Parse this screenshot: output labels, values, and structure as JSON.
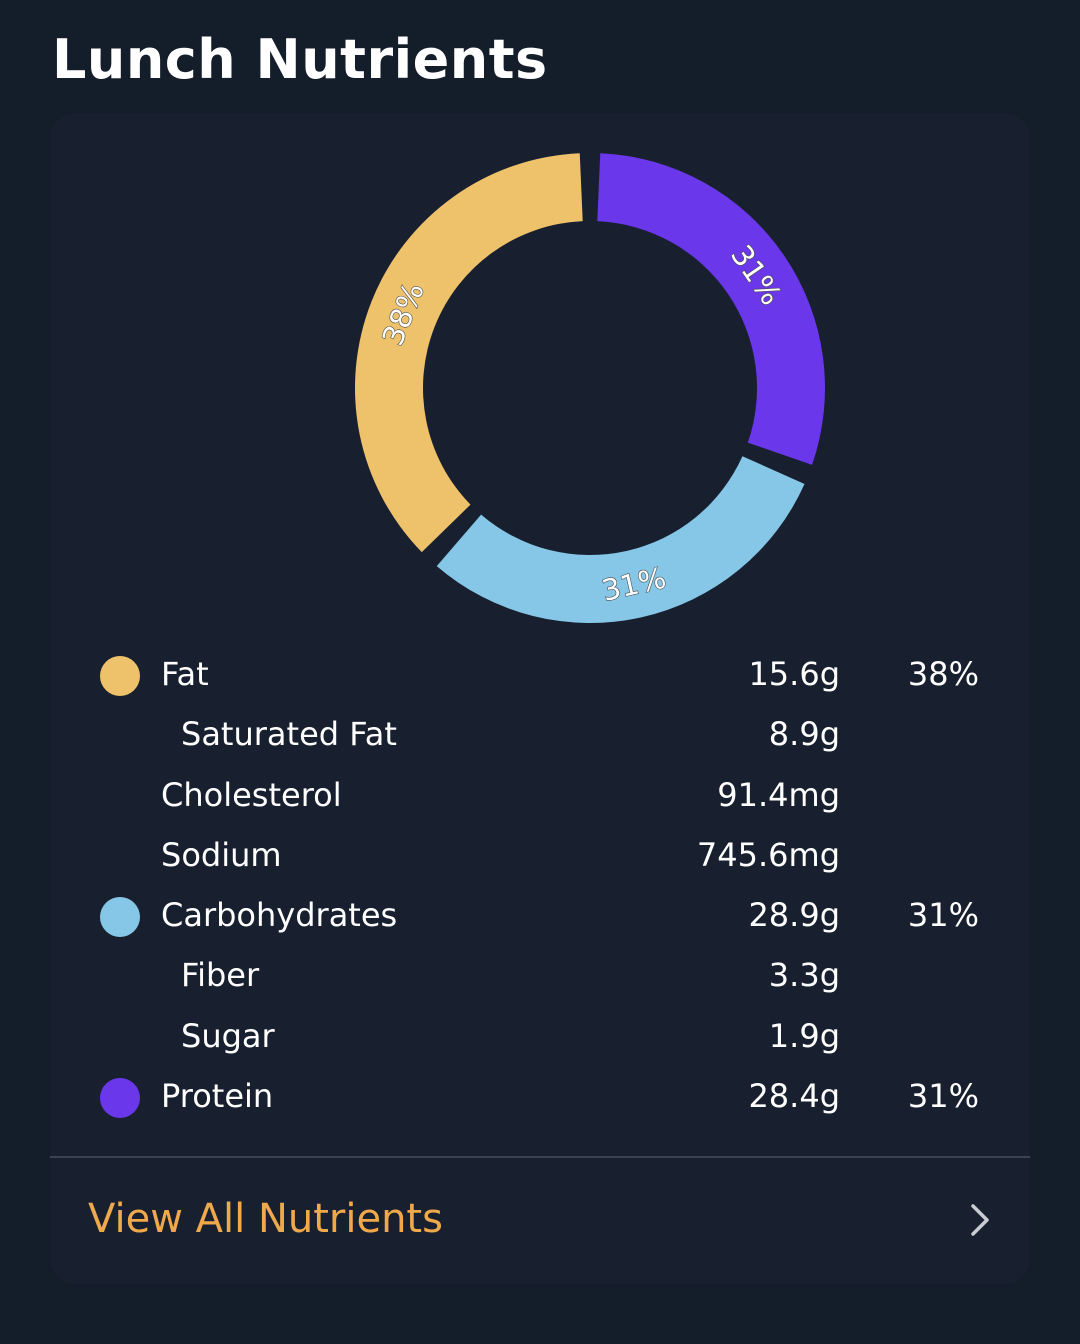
{
  "header": {
    "title": "Lunch Nutrients"
  },
  "chart_data": {
    "type": "pie",
    "style": "donut",
    "categories": [
      "Fat",
      "Carbohydrates",
      "Protein"
    ],
    "values": [
      38,
      31,
      31
    ],
    "colors": [
      "#eec26a",
      "#86c7e8",
      "#6a37ea"
    ],
    "slice_labels": [
      "38%",
      "31%",
      "31%"
    ]
  },
  "nutrients": [
    {
      "name": "Fat",
      "amount": "15.6g",
      "percent": "38%",
      "color": "#eec26a",
      "level": 0
    },
    {
      "name": "Saturated Fat",
      "amount": "8.9g",
      "percent": "",
      "level": 1
    },
    {
      "name": "Cholesterol",
      "amount": "91.4mg",
      "percent": "",
      "level": 0
    },
    {
      "name": "Sodium",
      "amount": "745.6mg",
      "percent": "",
      "level": 0
    },
    {
      "name": "Carbohydrates",
      "amount": "28.9g",
      "percent": "31%",
      "color": "#86c7e8",
      "level": 0
    },
    {
      "name": "Fiber",
      "amount": "3.3g",
      "percent": "",
      "level": 1
    },
    {
      "name": "Sugar",
      "amount": "1.9g",
      "percent": "",
      "level": 1
    },
    {
      "name": "Protein",
      "amount": "28.4g",
      "percent": "31%",
      "color": "#6a37ea",
      "level": 0
    }
  ],
  "footer": {
    "link_label": "View All Nutrients",
    "icon": "chevron-right-icon"
  },
  "colors": {
    "background": "#141d2a",
    "card": "#18202f",
    "accent": "#f0a94a"
  }
}
